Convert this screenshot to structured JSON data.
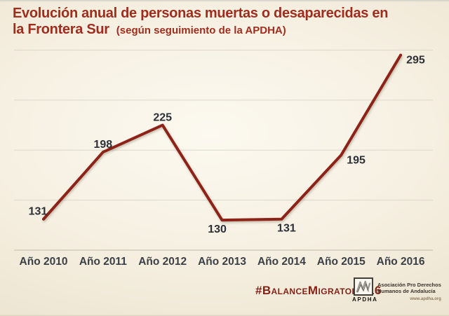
{
  "title": {
    "line1": "Evolución anual de personas muertas o desaparecidas en",
    "line2": "la Frontera Sur",
    "subtitle": "(según seguimiento de la APDHA)"
  },
  "chart_data": {
    "type": "line",
    "title": "Evolución anual de personas muertas o desaparecidas en la Frontera Sur (según seguimiento de la APDHA)",
    "categories": [
      "Año 2010",
      "Año 2011",
      "Año 2012",
      "Año 2013",
      "Año 2014",
      "Año 2015",
      "Año 2016"
    ],
    "values": [
      131,
      198,
      225,
      130,
      131,
      195,
      295
    ],
    "xlabel": "",
    "ylabel": "",
    "ylim": [
      100,
      300
    ],
    "gridline_values": [
      150,
      200,
      250,
      300
    ],
    "grid": true,
    "legend": false,
    "label_positions": [
      "above-left",
      "above",
      "above",
      "below-left",
      "below-right",
      "right",
      "right"
    ],
    "line_color": "#8d2318",
    "data_label_color": "#2d3137",
    "tick_label_color": "#3b3f46",
    "grid_color": "#dbd7c9",
    "axis_color": "#c9c4b3"
  },
  "footer": {
    "hashtag": "#BalanceMigratorio16",
    "logo": {
      "acronym": "APDHA",
      "name_line1": "Asociación Pro Derechos",
      "name_line2": "Humanos de Andalucía",
      "website": "www.apdha.org"
    }
  },
  "colors": {
    "title_text": "#9e2d1e",
    "hashtag_text": "#851f12",
    "background_center": "#fcf9f0",
    "background_edge": "#e7dec7"
  }
}
